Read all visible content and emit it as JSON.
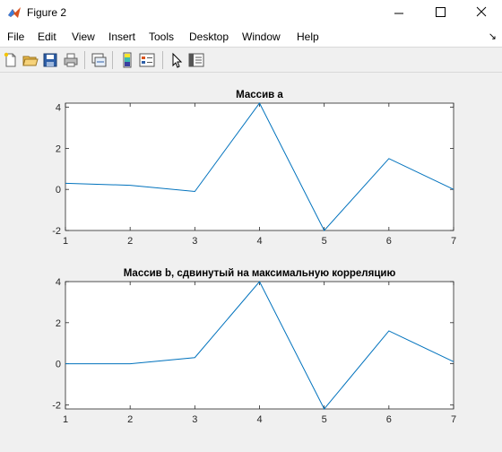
{
  "window": {
    "title": "Figure 2"
  },
  "menu": [
    "File",
    "Edit",
    "View",
    "Insert",
    "Tools",
    "Desktop",
    "Window",
    "Help"
  ],
  "menu_arrow": "↘",
  "toolbar": {
    "icons": [
      "new-figure-icon",
      "open-file-icon",
      "save-icon",
      "print-icon",
      "link-plot-icon",
      "insert-colorbar-icon",
      "insert-legend-icon",
      "edit-plot-icon",
      "property-inspector-icon"
    ]
  },
  "colors": {
    "line": "#0072bd",
    "axes_bg": "#ffffff",
    "figure_bg": "#f0f0f0"
  },
  "chart_data": [
    {
      "type": "line",
      "title": "Массив a",
      "x": [
        1,
        2,
        3,
        4,
        5,
        6,
        7
      ],
      "series": [
        {
          "values": [
            0.3,
            0.2,
            -0.1,
            4.2,
            -2.0,
            1.5,
            0.0
          ]
        }
      ],
      "xlim": [
        1,
        7
      ],
      "ylim": [
        -2,
        4.2
      ],
      "xticks": [
        1,
        2,
        3,
        4,
        5,
        6,
        7
      ],
      "yticks": [
        -2,
        0,
        2,
        4
      ],
      "grid": false
    },
    {
      "type": "line",
      "title": "Массив b, сдвинутый на максимальную корреляцию",
      "x": [
        1,
        2,
        3,
        4,
        5,
        6,
        7
      ],
      "series": [
        {
          "values": [
            0.0,
            0.0,
            0.3,
            4.0,
            -2.2,
            1.6,
            0.1
          ]
        }
      ],
      "xlim": [
        1,
        7
      ],
      "ylim": [
        -2.2,
        4
      ],
      "xticks": [
        1,
        2,
        3,
        4,
        5,
        6,
        7
      ],
      "yticks": [
        -2,
        0,
        2,
        4
      ],
      "grid": false
    }
  ]
}
